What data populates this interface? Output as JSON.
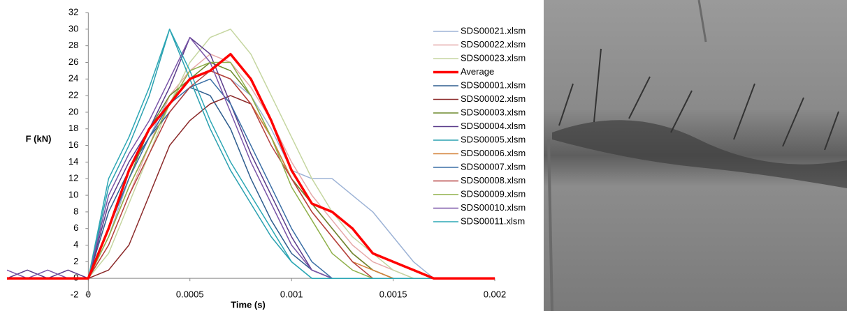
{
  "chart_data": {
    "type": "line",
    "x_label": "Time (s)",
    "y_label": "F (kN)",
    "x": [
      -0.0004,
      -0.0003,
      -0.0002,
      -0.0001,
      0,
      0.0001,
      0.0002,
      0.0003,
      0.0004,
      0.0005,
      0.0006,
      0.0007,
      0.0008,
      0.0009,
      0.001,
      0.0011,
      0.0012,
      0.0013,
      0.0014,
      0.0015,
      0.0016,
      0.0017,
      0.0018,
      0.0019,
      0.002
    ],
    "xlim": [
      -0.0004,
      0.002
    ],
    "xticks": [
      0,
      0.0005,
      0.001,
      0.0015,
      0.002
    ],
    "ylim": [
      -2,
      32
    ],
    "yticks": [
      -2,
      0,
      2,
      4,
      6,
      8,
      10,
      12,
      14,
      16,
      18,
      20,
      22,
      24,
      26,
      28,
      30,
      32
    ],
    "grid": false,
    "legend": "right",
    "series": [
      {
        "name": "SDS00021.xlsm",
        "color": "#9db3d6",
        "values": [
          0,
          0,
          0,
          0,
          0,
          5,
          12,
          17,
          22,
          24,
          25,
          24,
          22,
          18,
          13,
          12,
          12,
          10,
          8,
          5,
          2,
          0,
          0,
          0,
          0
        ]
      },
      {
        "name": "SDS00022.xlsm",
        "color": "#e6a9a9",
        "values": [
          0,
          0,
          0,
          0,
          0,
          4,
          10,
          16,
          22,
          25,
          27,
          26,
          23,
          19,
          14,
          10,
          7,
          4,
          2,
          1,
          0,
          0,
          0,
          0,
          0
        ]
      },
      {
        "name": "SDS00023.xlsm",
        "color": "#c5d6a0",
        "values": [
          0,
          0,
          0,
          0,
          0,
          3,
          9,
          15,
          21,
          26,
          29,
          30,
          27,
          22,
          17,
          12,
          8,
          5,
          3,
          1,
          0,
          0,
          0,
          0,
          0
        ]
      },
      {
        "name": "Average",
        "color": "#ff0000",
        "values": [
          0,
          0,
          0,
          0,
          0,
          6,
          13,
          18,
          21,
          24,
          25,
          27,
          24,
          19,
          13,
          9,
          8,
          6,
          3,
          2,
          1,
          0,
          0,
          0,
          0
        ]
      },
      {
        "name": "SDS00001.xlsm",
        "color": "#2e5d8e",
        "values": [
          0,
          0,
          0,
          0,
          0,
          8,
          13,
          17,
          20,
          23,
          22,
          18,
          12,
          7,
          3,
          1,
          0,
          0,
          0,
          0,
          0,
          0,
          0,
          0,
          0
        ]
      },
      {
        "name": "SDS00002.xlsm",
        "color": "#8b2a2a",
        "values": [
          0,
          0,
          0,
          0,
          0,
          1,
          4,
          10,
          16,
          19,
          21,
          22,
          21,
          17,
          12,
          9,
          6,
          3,
          1,
          0,
          0,
          0,
          0,
          0,
          0
        ]
      },
      {
        "name": "SDS00003.xlsm",
        "color": "#6e8b2e",
        "values": [
          0,
          0,
          0,
          0,
          0,
          6,
          12,
          18,
          22,
          24,
          26,
          25,
          22,
          17,
          12,
          9,
          6,
          3,
          1,
          0,
          0,
          0,
          0,
          0,
          0
        ]
      },
      {
        "name": "SDS00004.xlsm",
        "color": "#5b3c8a",
        "values": [
          0,
          1,
          0,
          1,
          0,
          9,
          14,
          18,
          23,
          29,
          27,
          21,
          15,
          10,
          5,
          1,
          0,
          0,
          0,
          0,
          0,
          0,
          0,
          0,
          0
        ]
      },
      {
        "name": "SDS00005.xlsm",
        "color": "#2aa0b0",
        "values": [
          0,
          0,
          0,
          0,
          0,
          11,
          16,
          22,
          30,
          24,
          18,
          13,
          9,
          5,
          2,
          0,
          0,
          0,
          0,
          0,
          0,
          0,
          0,
          0,
          0
        ]
      },
      {
        "name": "SDS00006.xlsm",
        "color": "#d4833a",
        "values": [
          0,
          0,
          0,
          0,
          0,
          5,
          11,
          16,
          21,
          24,
          25,
          24,
          21,
          17,
          12,
          8,
          5,
          2,
          1,
          0,
          0,
          0,
          0,
          0,
          0
        ]
      },
      {
        "name": "SDS00007.xlsm",
        "color": "#3a6ea5",
        "values": [
          0,
          0,
          0,
          0,
          0,
          6,
          12,
          17,
          21,
          23,
          24,
          21,
          16,
          11,
          6,
          2,
          0,
          0,
          0,
          0,
          0,
          0,
          0,
          0,
          0
        ]
      },
      {
        "name": "SDS00008.xlsm",
        "color": "#b54040",
        "values": [
          0,
          0,
          0,
          0,
          0,
          4,
          10,
          15,
          20,
          23,
          25,
          24,
          21,
          16,
          12,
          8,
          5,
          2,
          0,
          0,
          0,
          0,
          0,
          0,
          0
        ]
      },
      {
        "name": "SDS00009.xlsm",
        "color": "#8fb04a",
        "values": [
          0,
          0,
          0,
          0,
          0,
          5,
          11,
          16,
          21,
          25,
          26,
          26,
          22,
          17,
          11,
          7,
          3,
          1,
          0,
          0,
          0,
          0,
          0,
          0,
          0
        ]
      },
      {
        "name": "SDS00010.xlsm",
        "color": "#7a55a8",
        "values": [
          1,
          0,
          1,
          0,
          0,
          10,
          15,
          19,
          24,
          29,
          26,
          20,
          14,
          9,
          4,
          1,
          0,
          0,
          0,
          0,
          0,
          0,
          0,
          0,
          0
        ]
      },
      {
        "name": "SDS00011.xlsm",
        "color": "#2ca7b5",
        "values": [
          0,
          0,
          0,
          0,
          0,
          12,
          17,
          23,
          30,
          25,
          19,
          14,
          10,
          6,
          2,
          0,
          0,
          0,
          0,
          0,
          0,
          0,
          0,
          0,
          0
        ]
      }
    ]
  }
}
